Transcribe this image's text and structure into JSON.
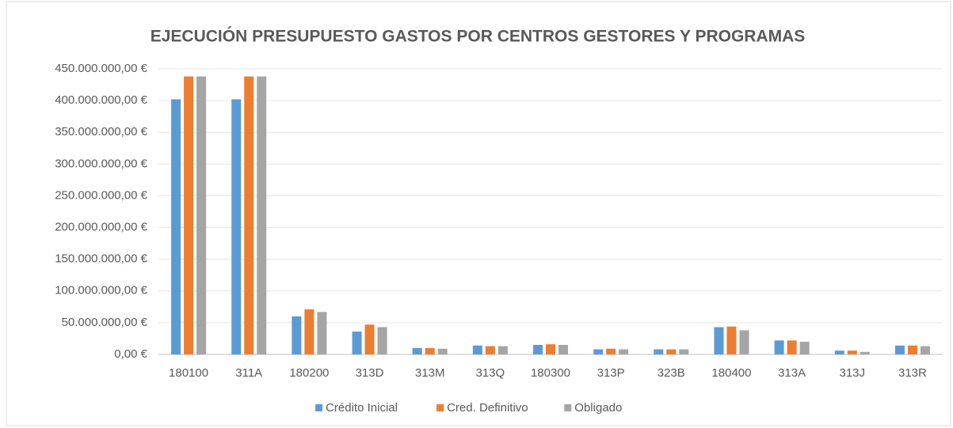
{
  "chart_data": {
    "type": "bar",
    "title": "EJECUCIÓN PRESUPUESTO GASTOS POR CENTROS GESTORES Y PROGRAMAS",
    "categories": [
      "180100",
      "311A",
      "180200",
      "313D",
      "313M",
      "313Q",
      "180300",
      "313P",
      "323B",
      "180400",
      "313A",
      "313J",
      "313R"
    ],
    "series": [
      {
        "name": "Crédito Inicial",
        "color": "#5b9bd5",
        "values": [
          402000000,
          402000000,
          60000000,
          36000000,
          10000000,
          14000000,
          15000000,
          8000000,
          8000000,
          43000000,
          22000000,
          6000000,
          14000000
        ]
      },
      {
        "name": "Cred. Definitivo",
        "color": "#ed7d31",
        "values": [
          438000000,
          438000000,
          71000000,
          47000000,
          10000000,
          13000000,
          16000000,
          9000000,
          8000000,
          44000000,
          22000000,
          6000000,
          14000000
        ]
      },
      {
        "name": "Obligado",
        "color": "#a5a5a5",
        "values": [
          438000000,
          438000000,
          67000000,
          43000000,
          9000000,
          13000000,
          15000000,
          8000000,
          8000000,
          38000000,
          20000000,
          4000000,
          13000000
        ]
      }
    ],
    "ylim": [
      0,
      450000000
    ],
    "yticks": [
      {
        "value": 0,
        "label": "0,00 €"
      },
      {
        "value": 50000000,
        "label": "50.000.000,00 €"
      },
      {
        "value": 100000000,
        "label": "100.000.000,00 €"
      },
      {
        "value": 150000000,
        "label": "150.000.000,00 €"
      },
      {
        "value": 200000000,
        "label": "200.000.000,00 €"
      },
      {
        "value": 250000000,
        "label": "250.000.000,00 €"
      },
      {
        "value": 300000000,
        "label": "300.000.000,00 €"
      },
      {
        "value": 350000000,
        "label": "350.000.000,00 €"
      },
      {
        "value": 400000000,
        "label": "400.000.000,00 €"
      },
      {
        "value": 450000000,
        "label": "450.000.000,00 €"
      }
    ],
    "grid": true,
    "legend": "bottom"
  }
}
